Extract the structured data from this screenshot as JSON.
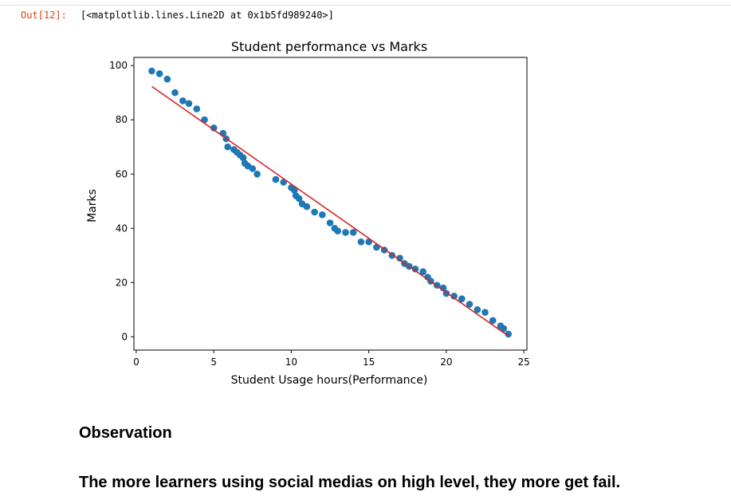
{
  "cell": {
    "out_prompt": "Out[12]:",
    "output_text": "[<matplotlib.lines.Line2D at 0x1b5fd989240>]"
  },
  "markdown": {
    "heading": "Observation",
    "text": "The more learners using social medias on high level, they more get fail."
  },
  "chart_data": {
    "type": "scatter",
    "title": "Student performance vs Marks",
    "xlabel": "Student Usage hours(Performance)",
    "ylabel": "Marks",
    "xlim": [
      -0.15,
      25.2
    ],
    "ylim": [
      -4.9,
      103.0
    ],
    "xticks": [
      0,
      5,
      10,
      15,
      20,
      25
    ],
    "yticks": [
      0,
      20,
      40,
      60,
      80,
      100
    ],
    "grid": false,
    "colors": {
      "points": "#1f77b4",
      "line": "#d62728"
    },
    "series": [
      {
        "kind": "scatter",
        "x": [
          1.0,
          1.5,
          2.0,
          2.5,
          3.0,
          3.4,
          3.9,
          4.4,
          5.0,
          5.6,
          5.8,
          5.9,
          6.3,
          6.5,
          6.7,
          6.9,
          7.0,
          7.2,
          7.5,
          7.8,
          9.0,
          9.5,
          10.0,
          10.2,
          10.3,
          10.5,
          10.7,
          11.0,
          11.5,
          12.0,
          12.5,
          12.8,
          13.0,
          13.5,
          14.0,
          14.5,
          15.0,
          15.5,
          16.0,
          16.5,
          17.0,
          17.3,
          17.6,
          18.0,
          18.5,
          18.8,
          19.0,
          19.4,
          19.8,
          20.0,
          20.5,
          21.0,
          21.5,
          22.0,
          22.5,
          23.0,
          23.5,
          23.7,
          24.0
        ],
        "y": [
          98,
          97,
          95,
          90,
          87,
          86,
          84,
          80,
          77,
          75,
          73,
          70,
          69,
          68,
          67,
          66,
          64,
          63,
          62,
          60,
          58,
          57,
          55,
          54,
          52,
          51,
          49,
          48,
          46,
          45,
          42,
          40,
          39,
          38.5,
          38.5,
          35,
          35,
          33,
          32,
          30,
          29,
          27,
          26,
          25,
          24,
          22,
          20.5,
          19,
          18,
          16,
          15,
          14,
          12,
          10,
          9,
          6,
          4,
          3,
          1
        ]
      },
      {
        "kind": "line",
        "x": [
          1.0,
          24.0
        ],
        "y": [
          92.3,
          0.3
        ]
      }
    ]
  }
}
